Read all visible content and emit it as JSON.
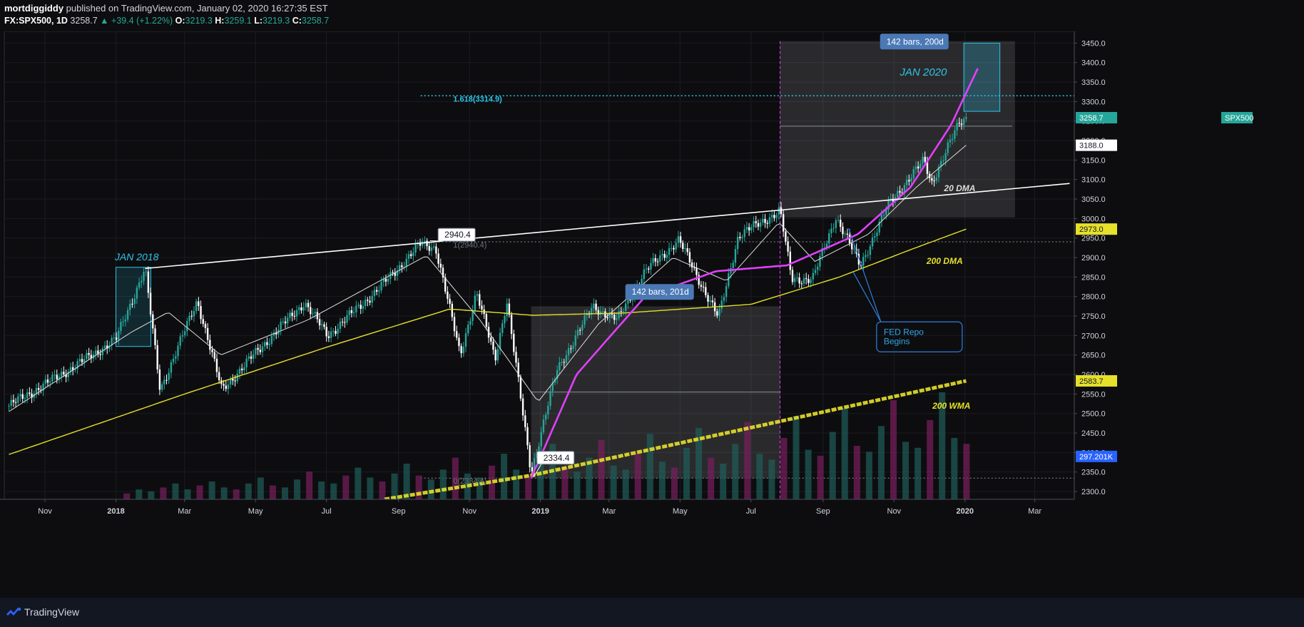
{
  "header": {
    "author": "mortdiggiddy",
    "published_text": " published on TradingView.com, January 02, 2020 16:27:35 EST",
    "symbol": "FX:SPX500, 1D",
    "last": "3258.7",
    "change": "+39.4 (+1.22%)",
    "o_label": "O:",
    "o_value": "3219.3",
    "h_label": "H:",
    "h_value": "3259.1",
    "l_label": "L:",
    "l_value": "3219.3",
    "c_label": "C:",
    "c_value": "3258.7"
  },
  "footer": {
    "brand": "TradingView"
  },
  "colors": {
    "background": "#0d0d0f",
    "up": "#26a69a",
    "down": "#ffffff",
    "magenta": "#e040fb",
    "yellow": "#e6e02a",
    "cyan": "#2fc4e8",
    "white_line": "#ffffff",
    "label_blue": "#4b79b5"
  },
  "chart_data": {
    "type": "candlestick",
    "ylim": [
      2280,
      3480
    ],
    "yticks": [
      "3450.0",
      "3400.0",
      "3350.0",
      "3300.0",
      "3250.0",
      "3200.0",
      "3150.0",
      "3100.0",
      "3050.0",
      "3000.0",
      "2950.0",
      "2900.0",
      "2850.0",
      "2800.0",
      "2750.0",
      "2700.0",
      "2650.0",
      "2600.0",
      "2550.0",
      "2500.0",
      "2450.0",
      "2400.0",
      "2350.0",
      "2300.0"
    ],
    "xticks": [
      {
        "label": "Nov",
        "date": "2017-11-01"
      },
      {
        "label": "2018",
        "date": "2018-01-01"
      },
      {
        "label": "Mar",
        "date": "2018-03-01"
      },
      {
        "label": "May",
        "date": "2018-05-01"
      },
      {
        "label": "Jul",
        "date": "2018-07-01"
      },
      {
        "label": "Sep",
        "date": "2018-09-01"
      },
      {
        "label": "Nov",
        "date": "2018-11-01"
      },
      {
        "label": "2019",
        "date": "2019-01-01"
      },
      {
        "label": "Mar",
        "date": "2019-03-01"
      },
      {
        "label": "May",
        "date": "2019-05-01"
      },
      {
        "label": "Jul",
        "date": "2019-07-01"
      },
      {
        "label": "Sep",
        "date": "2019-09-01"
      },
      {
        "label": "Nov",
        "date": "2019-11-01"
      },
      {
        "label": "2020",
        "date": "2020-01-01"
      },
      {
        "label": "Mar",
        "date": "2020-03-01"
      }
    ],
    "price_series": [
      {
        "date": "2017-10-01",
        "value": 2520
      },
      {
        "date": "2017-11-01",
        "value": 2575
      },
      {
        "date": "2017-12-01",
        "value": 2630
      },
      {
        "date": "2018-01-01",
        "value": 2690
      },
      {
        "date": "2018-01-26",
        "value": 2872
      },
      {
        "date": "2018-02-08",
        "value": 2560
      },
      {
        "date": "2018-03-12",
        "value": 2790
      },
      {
        "date": "2018-04-02",
        "value": 2560
      },
      {
        "date": "2018-05-01",
        "value": 2655
      },
      {
        "date": "2018-06-12",
        "value": 2785
      },
      {
        "date": "2018-07-02",
        "value": 2700
      },
      {
        "date": "2018-08-15",
        "value": 2820
      },
      {
        "date": "2018-09-20",
        "value": 2935
      },
      {
        "date": "2018-10-03",
        "value": 2925
      },
      {
        "date": "2018-10-24",
        "value": 2650
      },
      {
        "date": "2018-11-07",
        "value": 2810
      },
      {
        "date": "2018-11-23",
        "value": 2640
      },
      {
        "date": "2018-12-03",
        "value": 2790
      },
      {
        "date": "2018-12-24",
        "value": 2350
      },
      {
        "date": "2019-01-15",
        "value": 2610
      },
      {
        "date": "2019-02-15",
        "value": 2775
      },
      {
        "date": "2019-03-08",
        "value": 2740
      },
      {
        "date": "2019-04-01",
        "value": 2865
      },
      {
        "date": "2019-04-30",
        "value": 2945
      },
      {
        "date": "2019-06-03",
        "value": 2745
      },
      {
        "date": "2019-06-20",
        "value": 2955
      },
      {
        "date": "2019-07-26",
        "value": 3020
      },
      {
        "date": "2019-08-05",
        "value": 2845
      },
      {
        "date": "2019-08-23",
        "value": 2845
      },
      {
        "date": "2019-09-12",
        "value": 3005
      },
      {
        "date": "2019-10-03",
        "value": 2880
      },
      {
        "date": "2019-10-28",
        "value": 3040
      },
      {
        "date": "2019-11-27",
        "value": 3150
      },
      {
        "date": "2019-12-03",
        "value": 3090
      },
      {
        "date": "2019-12-27",
        "value": 3245
      },
      {
        "date": "2020-01-02",
        "value": 3258.7
      }
    ],
    "ma20": [
      {
        "date": "2017-10-01",
        "value": 2505
      },
      {
        "date": "2018-01-15",
        "value": 2710
      },
      {
        "date": "2018-02-15",
        "value": 2760
      },
      {
        "date": "2018-04-01",
        "value": 2650
      },
      {
        "date": "2018-06-15",
        "value": 2740
      },
      {
        "date": "2018-09-25",
        "value": 2905
      },
      {
        "date": "2018-11-10",
        "value": 2740
      },
      {
        "date": "2018-12-30",
        "value": 2530
      },
      {
        "date": "2019-02-20",
        "value": 2730
      },
      {
        "date": "2019-04-25",
        "value": 2900
      },
      {
        "date": "2019-06-10",
        "value": 2840
      },
      {
        "date": "2019-07-25",
        "value": 2990
      },
      {
        "date": "2019-08-25",
        "value": 2890
      },
      {
        "date": "2019-10-10",
        "value": 2960
      },
      {
        "date": "2019-11-20",
        "value": 3080
      },
      {
        "date": "2020-01-02",
        "value": 3188
      }
    ],
    "dma200": [
      {
        "date": "2017-10-01",
        "value": 2395
      },
      {
        "date": "2018-03-01",
        "value": 2550
      },
      {
        "date": "2018-07-01",
        "value": 2670
      },
      {
        "date": "2018-10-15",
        "value": 2768
      },
      {
        "date": "2018-12-25",
        "value": 2752
      },
      {
        "date": "2019-03-15",
        "value": 2758
      },
      {
        "date": "2019-07-01",
        "value": 2780
      },
      {
        "date": "2019-09-15",
        "value": 2850
      },
      {
        "date": "2019-11-15",
        "value": 2920
      },
      {
        "date": "2020-01-02",
        "value": 2973
      }
    ],
    "wma200": [
      {
        "date": "2018-08-20",
        "value": 2280
      },
      {
        "date": "2018-12-25",
        "value": 2342
      },
      {
        "date": "2020-01-02",
        "value": 2583.7
      }
    ],
    "magenta_curve": [
      {
        "date": "2018-12-24",
        "value": 2334.4
      },
      {
        "date": "2019-02-01",
        "value": 2600
      },
      {
        "date": "2019-04-01",
        "value": 2800
      },
      {
        "date": "2019-06-01",
        "value": 2865
      },
      {
        "date": "2019-08-01",
        "value": 2880
      },
      {
        "date": "2019-10-01",
        "value": 2960
      },
      {
        "date": "2019-11-15",
        "value": 3080
      },
      {
        "date": "2019-12-20",
        "value": 3240
      },
      {
        "date": "2020-01-12",
        "value": 3385
      }
    ],
    "trendline": {
      "start": {
        "date": "2018-01-26",
        "value": 2872
      },
      "end": {
        "date": "2020-03-31",
        "value": 3090
      }
    },
    "volume": [
      3,
      5,
      4,
      6,
      8,
      5,
      7,
      9,
      6,
      5,
      8,
      11,
      7,
      6,
      10,
      14,
      9,
      8,
      12,
      16,
      11,
      9,
      13,
      18,
      12,
      10,
      15,
      21,
      13,
      11,
      17,
      23,
      15,
      12,
      19,
      28,
      16,
      14,
      21,
      30,
      17,
      15,
      23,
      33,
      19,
      16,
      26,
      36,
      21,
      18,
      28,
      39,
      23,
      20,
      31,
      42,
      25,
      22,
      34,
      46,
      27,
      24,
      37,
      50,
      29,
      26,
      40,
      54,
      31,
      28
    ],
    "labels": {
      "jan2018": "JAN 2018",
      "jan2020": "JAN 2020",
      "fib": "1.618(3314.9)",
      "high_callout": "2940.4",
      "high_dotted_label": "1(2940.4)",
      "low_callout": "2334.4",
      "low_dotted_label": "0(2334.4)",
      "bars_201d": "142 bars, 201d",
      "bars_200d": "142 bars, 200d",
      "dma20": "20 DMA",
      "dma200": "200 DMA",
      "wma200": "200 WMA",
      "fed_repo": "FED Repo Begins"
    },
    "price_tags": {
      "spx500_label": "SPX500",
      "spx500_value": "3258.7",
      "ma20_value": "3188.0",
      "dma200_value": "2973.0",
      "wma200_value": "2583.7",
      "volume_value": "297.201K"
    }
  }
}
